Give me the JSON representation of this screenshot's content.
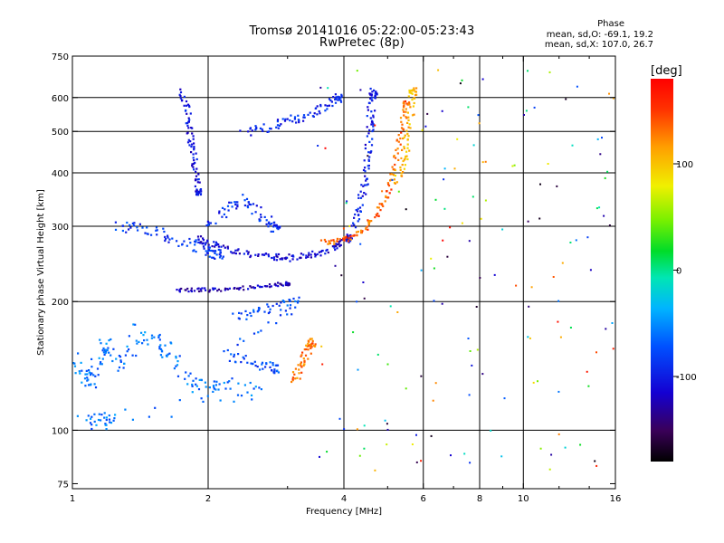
{
  "figure": {
    "title_line1": "Tromsø 20141016 05:22:00-05:23:43",
    "title_line2": "RwPretec (8p)",
    "phase_header": "Phase",
    "phase_o": "mean, sd,O: -69.1, 19.2",
    "phase_x": "mean, sd,X: 107.0, 26.7"
  },
  "chart_data": {
    "type": "scatter",
    "xlabel": "Frequency [MHz]",
    "ylabel": "Stationary phase Virtual Height [km]",
    "x_scale": "log",
    "y_scale": "log",
    "xlim": [
      1,
      16
    ],
    "ylim": [
      73,
      750
    ],
    "x_ticks": [
      {
        "value": 1,
        "label": "1"
      },
      {
        "value": 2,
        "label": "2"
      },
      {
        "value": 4,
        "label": "4"
      },
      {
        "value": 6,
        "label": "6"
      },
      {
        "value": 8,
        "label": "8"
      },
      {
        "value": 10,
        "label": "10"
      },
      {
        "value": 16,
        "label": "16"
      }
    ],
    "x_minor": [
      3,
      5,
      7,
      9,
      12,
      14
    ],
    "x_grid": [
      2,
      4,
      6,
      8,
      10
    ],
    "y_ticks": [
      {
        "value": 75,
        "label": "75"
      },
      {
        "value": 100,
        "label": "100"
      },
      {
        "value": 200,
        "label": "200"
      },
      {
        "value": 300,
        "label": "300"
      },
      {
        "value": 400,
        "label": "400"
      },
      {
        "value": 500,
        "label": "500"
      },
      {
        "value": 600,
        "label": "600"
      },
      {
        "value": 750,
        "label": "750"
      }
    ],
    "y_grid": [
      100,
      200,
      300,
      400,
      500,
      600
    ],
    "grid": true,
    "colorbar": {
      "label": "[deg]",
      "min": -180,
      "max": 180,
      "ticks": [
        {
          "value": 100,
          "label": "100"
        },
        {
          "value": 0,
          "label": "0"
        },
        {
          "value": -100,
          "label": "-100"
        }
      ],
      "colormap": "rainbow"
    },
    "traces": [
      {
        "name": "",
        "phase": -110,
        "spread_f": 0.018,
        "spread_h": 0.018,
        "points": [
          [
            1.9,
            280
          ],
          [
            2.0,
            275
          ],
          [
            2.2,
            265
          ],
          [
            2.5,
            258
          ],
          [
            2.8,
            254
          ],
          [
            3.0,
            253
          ],
          [
            3.3,
            256
          ],
          [
            3.6,
            262
          ],
          [
            3.9,
            272
          ],
          [
            4.1,
            282
          ]
        ]
      },
      {
        "name": "",
        "phase": -85,
        "spread_f": 0.03,
        "spread_h": 0.03,
        "points": [
          [
            1.25,
            300
          ],
          [
            1.4,
            295
          ],
          [
            1.6,
            287
          ],
          [
            1.8,
            275
          ],
          [
            2.0,
            265
          ],
          [
            2.1,
            258
          ]
        ]
      },
      {
        "name": "",
        "phase": -100,
        "spread_f": 0.02,
        "spread_h": 0.02,
        "points": [
          [
            4.2,
            300
          ],
          [
            4.35,
            330
          ],
          [
            4.45,
            380
          ],
          [
            4.5,
            430
          ],
          [
            4.55,
            500
          ],
          [
            4.6,
            560
          ],
          [
            4.65,
            620
          ]
        ]
      },
      {
        "name": "",
        "phase": 135,
        "spread_f": 0.015,
        "spread_h": 0.015,
        "points": [
          [
            3.6,
            275
          ],
          [
            3.9,
            277
          ],
          [
            4.2,
            285
          ],
          [
            4.5,
            300
          ],
          [
            4.8,
            325
          ],
          [
            5.0,
            360
          ],
          [
            5.2,
            420
          ],
          [
            5.35,
            500
          ],
          [
            5.5,
            580
          ]
        ]
      },
      {
        "name": "",
        "phase": 105,
        "spread_f": 0.02,
        "spread_h": 0.02,
        "points": [
          [
            5.2,
            380
          ],
          [
            5.4,
            420
          ],
          [
            5.5,
            470
          ],
          [
            5.6,
            540
          ],
          [
            5.7,
            620
          ]
        ]
      },
      {
        "name": "",
        "phase": -105,
        "spread_f": 0.015,
        "spread_h": 0.015,
        "points": [
          [
            1.75,
            620
          ],
          [
            1.8,
            560
          ],
          [
            1.82,
            500
          ],
          [
            1.85,
            450
          ],
          [
            1.88,
            400
          ],
          [
            1.9,
            360
          ]
        ]
      },
      {
        "name": "",
        "phase": -95,
        "spread_f": 0.02,
        "spread_h": 0.025,
        "points": [
          [
            2.4,
            500
          ],
          [
            2.7,
            510
          ],
          [
            3.0,
            525
          ],
          [
            3.3,
            545
          ],
          [
            3.6,
            570
          ],
          [
            3.9,
            600
          ]
        ]
      },
      {
        "name": "",
        "phase": -90,
        "spread_f": 0.03,
        "spread_h": 0.03,
        "points": [
          [
            2.0,
            300
          ],
          [
            2.2,
            330
          ],
          [
            2.4,
            350
          ],
          [
            2.6,
            320
          ],
          [
            2.8,
            300
          ]
        ]
      },
      {
        "name": "",
        "phase": -120,
        "spread_f": 0.01,
        "spread_h": 0.01,
        "points": [
          [
            1.7,
            213
          ],
          [
            1.9,
            213
          ],
          [
            2.1,
            213
          ],
          [
            2.4,
            215
          ],
          [
            2.7,
            218
          ],
          [
            3.0,
            220
          ]
        ]
      },
      {
        "name": "",
        "phase": -75,
        "spread_f": 0.025,
        "spread_h": 0.03,
        "points": [
          [
            2.3,
            185
          ],
          [
            2.6,
            190
          ],
          [
            2.9,
            195
          ],
          [
            3.2,
            200
          ],
          [
            2.2,
            150
          ],
          [
            2.5,
            145
          ],
          [
            2.8,
            140
          ]
        ]
      },
      {
        "name": "",
        "phase": -60,
        "spread_f": 0.035,
        "spread_h": 0.045,
        "points": [
          [
            1.0,
            145
          ],
          [
            1.05,
            135
          ],
          [
            1.1,
            130
          ],
          [
            1.15,
            150
          ],
          [
            1.2,
            160
          ],
          [
            1.3,
            140
          ],
          [
            1.4,
            170
          ],
          [
            1.55,
            160
          ],
          [
            1.65,
            150
          ],
          [
            1.8,
            130
          ],
          [
            2.0,
            125
          ],
          [
            2.2,
            130
          ],
          [
            2.6,
            120
          ],
          [
            1.05,
            105
          ],
          [
            1.2,
            105
          ]
        ]
      },
      {
        "name": "",
        "phase": 130,
        "spread_f": 0.02,
        "spread_h": 0.03,
        "points": [
          [
            3.1,
            130
          ],
          [
            3.2,
            140
          ],
          [
            3.3,
            150
          ],
          [
            3.4,
            160
          ]
        ]
      }
    ]
  }
}
